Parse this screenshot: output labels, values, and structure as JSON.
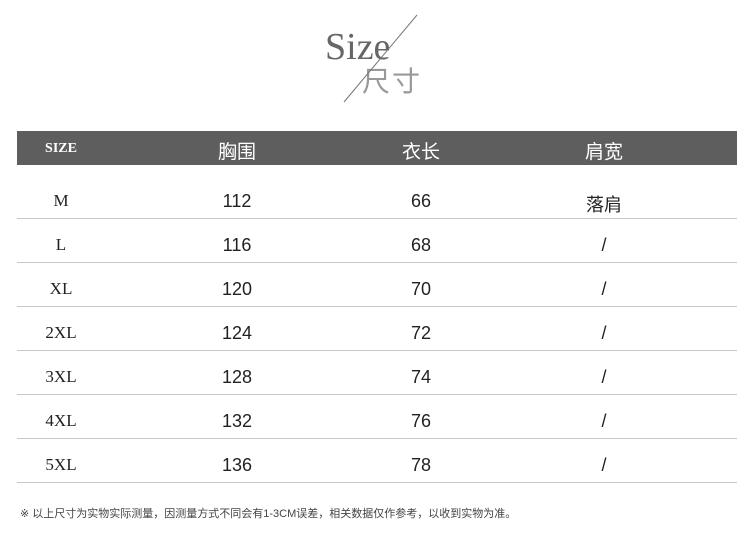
{
  "title": {
    "en": "Size",
    "cn": "尺寸"
  },
  "table": {
    "headers": [
      "SIZE",
      "胸围",
      "衣长",
      "肩宽"
    ],
    "rows": [
      [
        "M",
        "112",
        "66",
        "落肩"
      ],
      [
        "L",
        "116",
        "68",
        "/"
      ],
      [
        "XL",
        "120",
        "70",
        "/"
      ],
      [
        "2XL",
        "124",
        "72",
        "/"
      ],
      [
        "3XL",
        "128",
        "74",
        "/"
      ],
      [
        "4XL",
        "132",
        "76",
        "/"
      ],
      [
        "5XL",
        "136",
        "78",
        "/"
      ]
    ]
  },
  "note": "※ 以上尺寸为实物实际测量，因测量方式不同会有1-3CM误差，相关数据仅作参考，以收到实物为准。",
  "colors": {
    "header_bg": "#5e5e5e",
    "divider": "#c8c8c8"
  }
}
